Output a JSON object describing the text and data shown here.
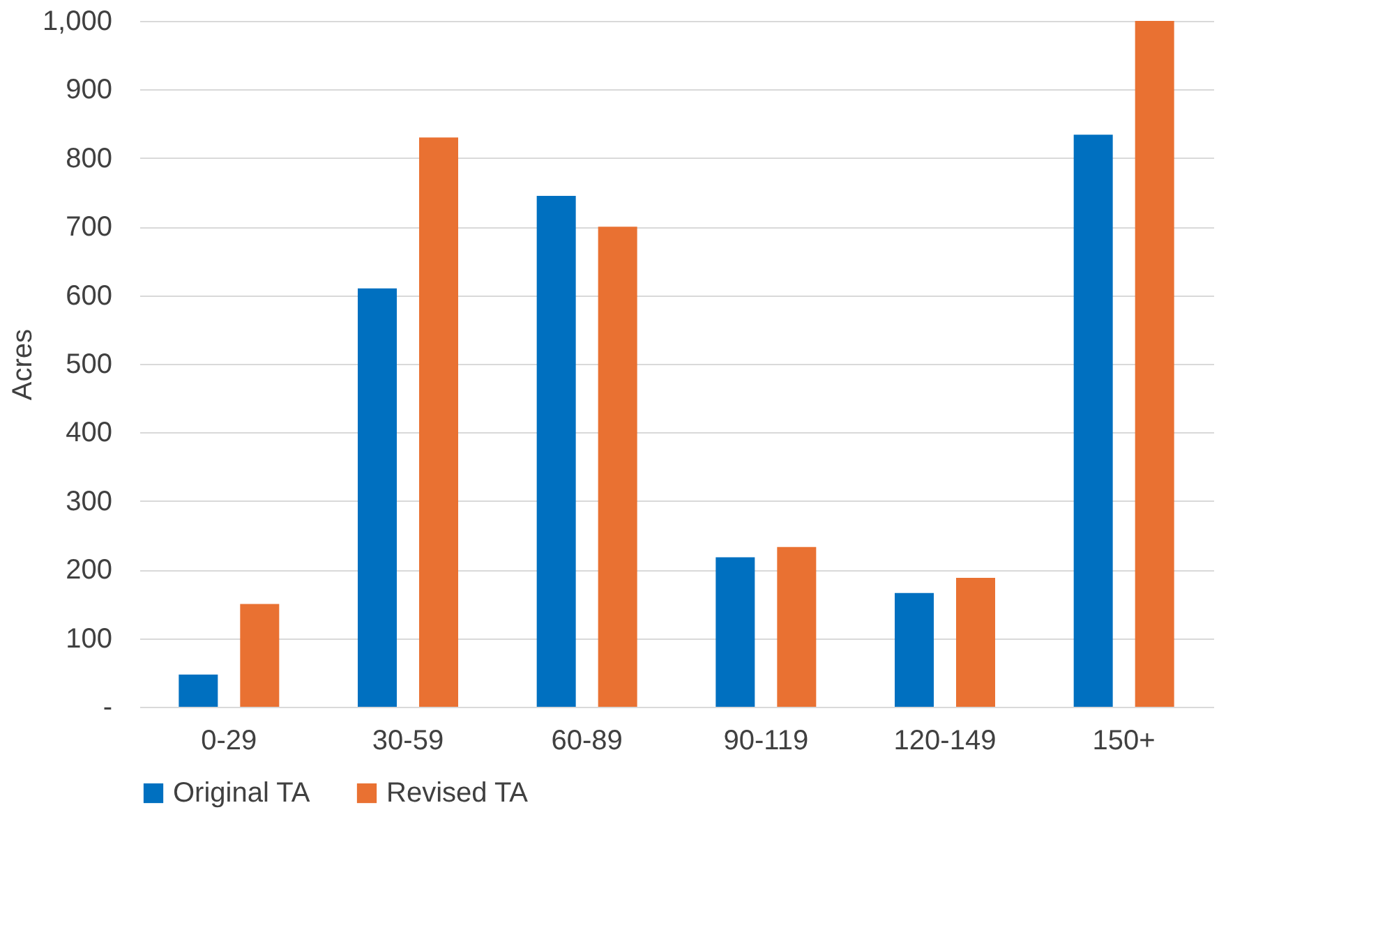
{
  "chart_data": {
    "type": "bar",
    "ylabel": "Acres",
    "categories": [
      "0-29",
      "30-59",
      "60-89",
      "90-119",
      "120-149",
      "150+"
    ],
    "series": [
      {
        "name": "Original TA",
        "color": "#0070c0",
        "values": [
          47,
          610,
          745,
          218,
          166,
          834
        ]
      },
      {
        "name": "Revised TA",
        "color": "#e97132",
        "values": [
          150,
          830,
          700,
          233,
          188,
          1000
        ]
      }
    ],
    "ylim": [
      0,
      1000
    ],
    "yticks": [
      {
        "value": 0,
        "label": "-"
      },
      100,
      200,
      300,
      400,
      500,
      600,
      700,
      800,
      900,
      {
        "value": 1000,
        "label": "1,000"
      }
    ],
    "grid": "y",
    "legend": "bottom"
  }
}
